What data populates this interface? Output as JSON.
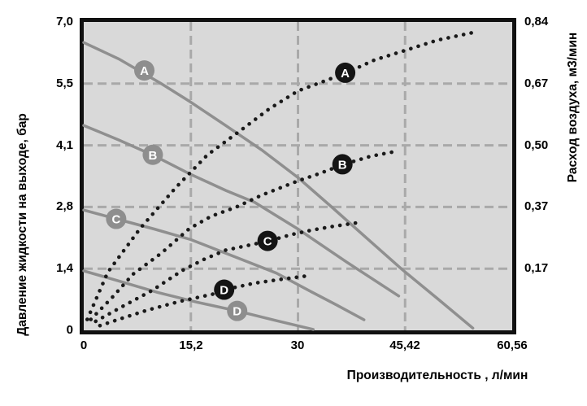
{
  "chart_data": {
    "type": "line",
    "x_axis": {
      "label": "Производительность , л/мин",
      "tick_labels": [
        "0",
        "15,2",
        "30",
        "45,42",
        "60,56"
      ],
      "tick_values": [
        0,
        15.2,
        30,
        45.42,
        60.56
      ],
      "range": [
        0,
        60.56
      ]
    },
    "y_left": {
      "label": "Давление жидкости на выходе, бар",
      "tick_labels": [
        "7,0",
        "5,5",
        "4,1",
        "2,8",
        "1,4",
        "0"
      ],
      "tick_values": [
        7.0,
        5.5,
        4.1,
        2.8,
        1.4,
        0
      ],
      "range": [
        0,
        7.0
      ]
    },
    "y_right": {
      "label": "Расход воздуха, м3/мин",
      "tick_labels": [
        "0,84",
        "0,67",
        "0,50",
        "0,37",
        "0,17"
      ],
      "tick_values": [
        0.84,
        0.67,
        0.5,
        0.37,
        0.17
      ],
      "range": [
        0,
        0.84
      ]
    },
    "grid": {
      "shown": true,
      "style": "dashed"
    },
    "legend": "labels on curves",
    "pressure_series": [
      {
        "name": "A",
        "axis": "left",
        "style": "solid",
        "points": [
          [
            0,
            6.5
          ],
          [
            5,
            6.1
          ],
          [
            11,
            5.5
          ],
          [
            15,
            5.1
          ],
          [
            20,
            4.55
          ],
          [
            25,
            4.0
          ],
          [
            30,
            3.42
          ],
          [
            35,
            2.78
          ],
          [
            40,
            2.08
          ],
          [
            45,
            1.38
          ],
          [
            50,
            0.72
          ],
          [
            55,
            0.05
          ]
        ]
      },
      {
        "name": "B",
        "axis": "left",
        "style": "solid",
        "points": [
          [
            0,
            4.55
          ],
          [
            5,
            4.22
          ],
          [
            10,
            3.88
          ],
          [
            15,
            3.5
          ],
          [
            20,
            3.15
          ],
          [
            24,
            2.9
          ],
          [
            30,
            2.3
          ],
          [
            37,
            1.55
          ],
          [
            44.5,
            0.78
          ]
        ]
      },
      {
        "name": "C",
        "axis": "left",
        "style": "solid",
        "points": [
          [
            0,
            2.73
          ],
          [
            4.6,
            2.53
          ],
          [
            10,
            2.3
          ],
          [
            15.2,
            2.06
          ],
          [
            22.5,
            1.59
          ],
          [
            27,
            1.3
          ],
          [
            31.5,
            0.91
          ],
          [
            35.5,
            0.58
          ],
          [
            39.5,
            0.24
          ]
        ]
      },
      {
        "name": "D",
        "axis": "left",
        "style": "solid",
        "points": [
          [
            0,
            1.35
          ],
          [
            5,
            1.12
          ],
          [
            10.5,
            0.86
          ],
          [
            16,
            0.64
          ],
          [
            21.6,
            0.44
          ],
          [
            27,
            0.22
          ],
          [
            32.2,
            0.02
          ]
        ]
      }
    ],
    "air_series": [
      {
        "name": "A",
        "axis": "right",
        "style": "dotted",
        "points": [
          [
            0.5,
            0.03
          ],
          [
            3.4,
            0.16
          ],
          [
            8,
            0.3
          ],
          [
            13,
            0.41
          ],
          [
            17.5,
            0.48
          ],
          [
            22,
            0.54
          ],
          [
            26,
            0.6
          ],
          [
            30,
            0.65
          ],
          [
            33.5,
            0.675
          ],
          [
            37,
            0.7
          ],
          [
            41,
            0.735
          ],
          [
            46,
            0.765
          ],
          [
            50,
            0.79
          ],
          [
            54.8,
            0.81
          ]
        ]
      },
      {
        "name": "B",
        "axis": "right",
        "style": "dotted",
        "points": [
          [
            1,
            0.03
          ],
          [
            4,
            0.09
          ],
          [
            7,
            0.155
          ],
          [
            11,
            0.22
          ],
          [
            15,
            0.3
          ],
          [
            18,
            0.34
          ],
          [
            21.5,
            0.37
          ],
          [
            25,
            0.395
          ],
          [
            30,
            0.425
          ],
          [
            33,
            0.44
          ],
          [
            36.6,
            0.46
          ],
          [
            40.5,
            0.477
          ],
          [
            44,
            0.487
          ]
        ]
      },
      {
        "name": "C",
        "axis": "right",
        "style": "dotted",
        "points": [
          [
            1.7,
            0.025
          ],
          [
            5.7,
            0.068
          ],
          [
            9.7,
            0.11
          ],
          [
            14,
            0.165
          ],
          [
            17,
            0.2
          ],
          [
            20,
            0.23
          ],
          [
            23,
            0.245
          ],
          [
            26,
            0.26
          ],
          [
            29,
            0.28
          ],
          [
            32,
            0.295
          ],
          [
            35,
            0.307
          ],
          [
            38.3,
            0.318
          ]
        ]
      },
      {
        "name": "D",
        "axis": "right",
        "style": "dotted",
        "points": [
          [
            2.3,
            0.013
          ],
          [
            5.7,
            0.035
          ],
          [
            9.1,
            0.056
          ],
          [
            13.7,
            0.08
          ],
          [
            18.3,
            0.1
          ],
          [
            19.8,
            0.112
          ],
          [
            24,
            0.13
          ],
          [
            27.4,
            0.14
          ],
          [
            31.3,
            0.15
          ]
        ]
      }
    ],
    "curve_badges": [
      {
        "letter": "A",
        "series": "pressure",
        "axis": "left",
        "at": [
          8.6,
          5.82
        ]
      },
      {
        "letter": "B",
        "series": "pressure",
        "axis": "left",
        "at": [
          9.8,
          3.9
        ]
      },
      {
        "letter": "C",
        "series": "pressure",
        "axis": "left",
        "at": [
          4.6,
          2.53
        ]
      },
      {
        "letter": "D",
        "series": "pressure",
        "axis": "left",
        "at": [
          21.6,
          0.44
        ]
      },
      {
        "letter": "A",
        "series": "air",
        "axis": "right",
        "at": [
          36.8,
          0.7
        ]
      },
      {
        "letter": "B",
        "series": "air",
        "axis": "right",
        "at": [
          36.4,
          0.46
        ]
      },
      {
        "letter": "C",
        "series": "air",
        "axis": "right",
        "at": [
          25.8,
          0.26
        ]
      },
      {
        "letter": "D",
        "series": "air",
        "axis": "right",
        "at": [
          19.8,
          0.112
        ]
      }
    ],
    "style": {
      "plot_bg": "#d9d9d9",
      "border": "#111111",
      "grid": "#a9a9a9",
      "pressure_curve": "#8f8f8f",
      "air_curve": "#1a1a1a",
      "gray_badge": "#8e8e8e",
      "black_badge": "#141414",
      "badge_letter": "#ffffff"
    }
  }
}
